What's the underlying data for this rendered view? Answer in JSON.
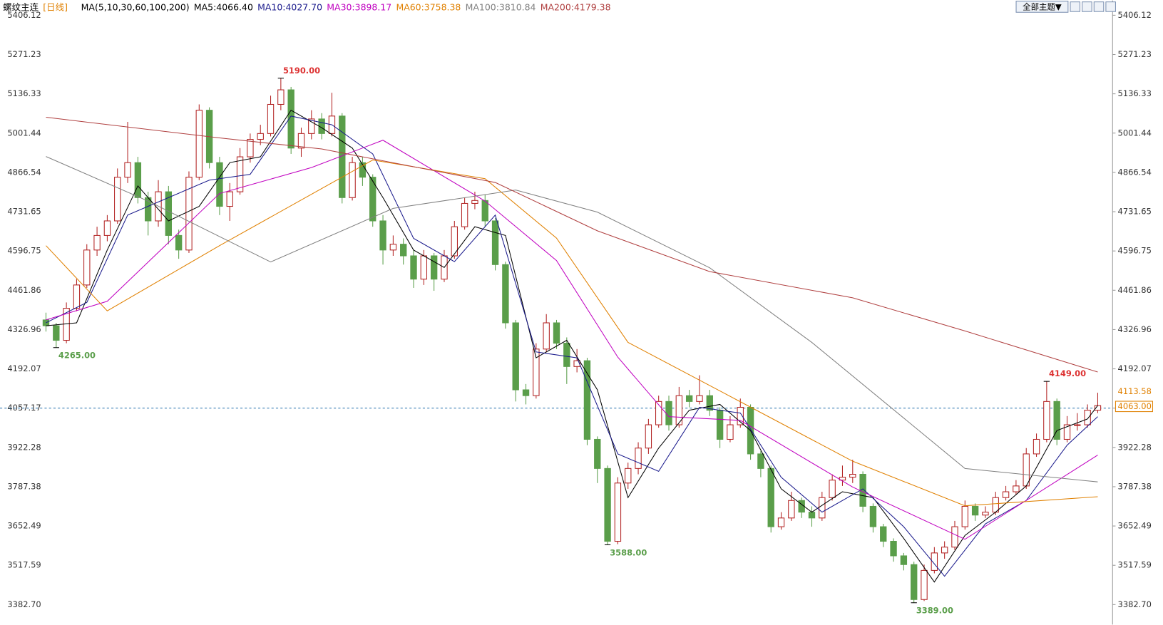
{
  "chart_data": {
    "type": "candlestick",
    "title": "螺纹主连",
    "period": "[日线]",
    "ma_label": "MA(5,10,30,60,100,200)",
    "toolbar": "全部主题▼",
    "up_color": "#b22222",
    "down_color": "#5a9e4a",
    "ylim": [
      3314,
      5457
    ],
    "yticks": [
      {
        "value": 3382.7,
        "label": "3382.70"
      },
      3517.59,
      3652.49,
      3787.38,
      3922.28,
      4057.17,
      4192.07,
      4326.96,
      4461.86,
      4596.75,
      4731.65,
      4866.54,
      5001.44,
      5136.33,
      5271.23,
      5406.12
    ],
    "price_line": 4057.17,
    "open": [
      4360,
      4340,
      4290,
      4400,
      4480,
      4600,
      4650,
      4700,
      4850,
      4900,
      4780,
      4700,
      4800,
      4650,
      4600,
      4850,
      5080,
      4900,
      4750,
      4800,
      4920,
      4980,
      5000,
      5100,
      5150,
      4950,
      5000,
      5050,
      5000,
      5060,
      4780,
      4900,
      4850,
      4700,
      4600,
      4620,
      4580,
      4500,
      4580,
      4500,
      4580,
      4680,
      4760,
      4770,
      4700,
      4550,
      4350,
      4120,
      4100,
      4260,
      4350,
      4280,
      4200,
      4220,
      3950,
      3850,
      3600,
      3800,
      3850,
      3920,
      4000,
      4080,
      4000,
      4100,
      4080,
      4100,
      4050,
      3950,
      4000,
      4060,
      3900,
      3850,
      3650,
      3680,
      3740,
      3700,
      3680,
      3750,
      3810,
      3820,
      3830,
      3720,
      3650,
      3600,
      3550,
      3520,
      3400,
      3500,
      3560,
      3580,
      3650,
      3720,
      3690,
      3700,
      3750,
      3770,
      3790,
      3900,
      3950,
      4080,
      3950,
      4000,
      4000,
      4050
    ],
    "high": [
      4385,
      4350,
      4420,
      4500,
      4620,
      4680,
      4720,
      4880,
      5040,
      4920,
      4800,
      4840,
      4820,
      4670,
      4870,
      5100,
      5090,
      4920,
      4830,
      4950,
      5000,
      5030,
      5130,
      5190,
      5160,
      5020,
      5080,
      5070,
      5140,
      5070,
      4920,
      4920,
      4860,
      4720,
      4650,
      4640,
      4600,
      4600,
      4590,
      4600,
      4700,
      4780,
      4800,
      4790,
      4710,
      4560,
      4360,
      4140,
      4280,
      4380,
      4360,
      4300,
      4260,
      4230,
      3960,
      3860,
      3820,
      3870,
      3940,
      4020,
      4100,
      4100,
      4130,
      4120,
      4170,
      4120,
      4060,
      4030,
      4090,
      4070,
      3910,
      3860,
      3700,
      3770,
      3750,
      3720,
      3770,
      3830,
      3860,
      3880,
      3840,
      3730,
      3660,
      3610,
      3560,
      3530,
      3520,
      3580,
      3600,
      3670,
      3740,
      3730,
      3720,
      3770,
      3790,
      3810,
      3920,
      3970,
      4149,
      4090,
      4030,
      4040,
      4070,
      4110
    ],
    "low": [
      4320,
      4265,
      4280,
      4390,
      4470,
      4580,
      4630,
      4690,
      4830,
      4760,
      4650,
      4680,
      4620,
      4570,
      4590,
      4840,
      4880,
      4720,
      4700,
      4790,
      4900,
      4960,
      4990,
      5080,
      4930,
      4920,
      4980,
      4980,
      4990,
      4760,
      4770,
      4820,
      4680,
      4550,
      4580,
      4550,
      4470,
      4480,
      4460,
      4490,
      4570,
      4670,
      4740,
      4680,
      4530,
      4330,
      4080,
      4070,
      4090,
      4250,
      4260,
      4140,
      4180,
      3930,
      3800,
      3588,
      3590,
      3780,
      3830,
      3900,
      3990,
      3980,
      3990,
      4060,
      4070,
      4030,
      3920,
      3940,
      3990,
      3880,
      3820,
      3630,
      3640,
      3670,
      3680,
      3650,
      3670,
      3740,
      3790,
      3800,
      3700,
      3630,
      3580,
      3530,
      3500,
      3389,
      3395,
      3490,
      3540,
      3570,
      3640,
      3670,
      3680,
      3690,
      3740,
      3760,
      3780,
      3890,
      3940,
      3930,
      3940,
      3980,
      3990,
      4040
    ],
    "close": [
      4340,
      4290,
      4400,
      4480,
      4600,
      4650,
      4700,
      4850,
      4900,
      4780,
      4700,
      4800,
      4650,
      4600,
      4850,
      5080,
      4900,
      4750,
      4800,
      4920,
      4980,
      5000,
      5100,
      5150,
      4950,
      5000,
      5050,
      5000,
      5060,
      4780,
      4900,
      4850,
      4700,
      4600,
      4620,
      4580,
      4500,
      4580,
      4500,
      4580,
      4680,
      4760,
      4770,
      4700,
      4550,
      4350,
      4120,
      4100,
      4260,
      4350,
      4280,
      4200,
      4220,
      3950,
      3850,
      3600,
      3800,
      3850,
      3920,
      4000,
      4080,
      4000,
      4100,
      4080,
      4100,
      4050,
      3950,
      4000,
      4060,
      3900,
      3850,
      3650,
      3680,
      3740,
      3700,
      3680,
      3750,
      3810,
      3820,
      3830,
      3720,
      3650,
      3600,
      3550,
      3520,
      3400,
      3500,
      3560,
      3580,
      3650,
      3720,
      3690,
      3700,
      3750,
      3770,
      3790,
      3900,
      3950,
      4080,
      3950,
      4000,
      4000,
      4050,
      4066
    ],
    "ma_lines": [
      {
        "name": "MA5:4066.40",
        "color": "#000000",
        "x": [
          0,
          3,
          6,
          9,
          12,
          15,
          18,
          21,
          24,
          27,
          30,
          33,
          36,
          39,
          42,
          45,
          48,
          51,
          54,
          57,
          60,
          63,
          66,
          69,
          72,
          75,
          78,
          81,
          84,
          87,
          90,
          93,
          96,
          99,
          102,
          103
        ],
        "values": [
          4340,
          4350,
          4600,
          4820,
          4700,
          4750,
          4900,
          4920,
          5080,
          5020,
          4950,
          4780,
          4600,
          4540,
          4680,
          4650,
          4230,
          4290,
          4120,
          3750,
          3920,
          4050,
          4070,
          3980,
          3780,
          3700,
          3770,
          3750,
          3610,
          3460,
          3620,
          3700,
          3790,
          3980,
          4020,
          4066
        ]
      },
      {
        "name": "MA10:4027.70",
        "color": "#1a1a8c",
        "x": [
          0,
          4,
          8,
          12,
          16,
          20,
          24,
          28,
          32,
          36,
          40,
          44,
          48,
          52,
          56,
          60,
          64,
          68,
          72,
          76,
          80,
          84,
          88,
          92,
          96,
          100,
          103
        ],
        "values": [
          4350,
          4420,
          4720,
          4780,
          4840,
          4860,
          5060,
          5030,
          4930,
          4640,
          4560,
          4720,
          4250,
          4230,
          3900,
          3840,
          4060,
          4040,
          3820,
          3700,
          3780,
          3650,
          3480,
          3660,
          3740,
          3930,
          4028
        ]
      },
      {
        "name": "MA30:3898.17",
        "color": "#c000c0",
        "x": [
          0,
          6,
          17,
          26,
          33,
          43,
          50,
          56,
          61,
          68,
          79,
          90,
          103
        ],
        "values": [
          4360,
          4424,
          4794,
          4883,
          4977,
          4768,
          4564,
          4232,
          4028,
          4015,
          3786,
          3607,
          3896
        ]
      },
      {
        "name": "MA60:3758.38",
        "color": "#e08000",
        "x": [
          0,
          6,
          17,
          32,
          43,
          50,
          57,
          68,
          79,
          90,
          103
        ],
        "values": [
          4615,
          4391,
          4615,
          4909,
          4845,
          4641,
          4283,
          4079,
          3875,
          3722,
          3753
        ]
      },
      {
        "name": "MA100:3810.84",
        "color": "#808080",
        "x": [
          0,
          10,
          22,
          34,
          46,
          54,
          65,
          75,
          90,
          103
        ],
        "values": [
          4921,
          4768,
          4559,
          4743,
          4806,
          4730,
          4539,
          4283,
          3850,
          3804
        ]
      },
      {
        "name": "MA200:4179.38",
        "color": "#b04040",
        "x": [
          0,
          17,
          27,
          44,
          54,
          65,
          79,
          90,
          103
        ],
        "values": [
          5056,
          4985,
          4947,
          4832,
          4666,
          4526,
          4436,
          4322,
          4181
        ]
      }
    ],
    "extremes": [
      {
        "value": 5190,
        "label": "5190.00"
      },
      {
        "value": 4265,
        "label": "4265.00"
      },
      {
        "value": 3588,
        "label": "3588.00"
      },
      {
        "value": 3389,
        "label": "3389.00"
      },
      {
        "value": 4149,
        "label": "4149.00"
      }
    ],
    "tags": [
      {
        "value": 4113.58,
        "label": "4113.58",
        "color": "#e08000"
      },
      {
        "value": 4063,
        "label": "4063.00",
        "color": "#e08000"
      }
    ]
  }
}
